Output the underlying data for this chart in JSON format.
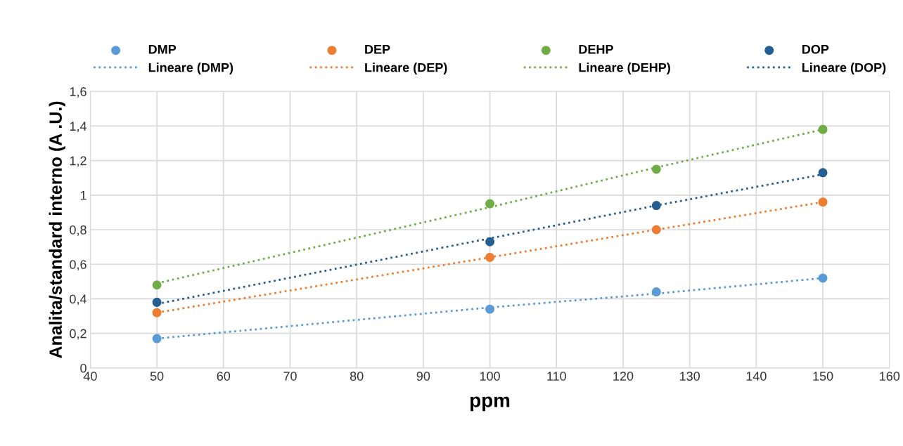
{
  "chart_data": {
    "type": "scatter",
    "xlabel": "ppm",
    "ylabel": "Analita/standard interno (A .U.)",
    "x": [
      50,
      100,
      125,
      150
    ],
    "series": [
      {
        "name": "DMP",
        "color": "#5b9bd5",
        "values": [
          0.17,
          0.34,
          0.44,
          0.52
        ]
      },
      {
        "name": "Lineare (DMP)",
        "type": "line",
        "color": "#5b9bd5",
        "values": [
          0.17,
          0.35,
          0.43,
          0.52
        ],
        "line_style": "dotted",
        "marker": "none"
      },
      {
        "name": "DEP",
        "color": "#ed7d31",
        "values": [
          0.32,
          0.64,
          0.8,
          0.96
        ]
      },
      {
        "name": "Lineare (DEP)",
        "type": "line",
        "color": "#ed7d31",
        "values": [
          0.32,
          0.64,
          0.8,
          0.96
        ],
        "line_style": "dotted",
        "marker": "none"
      },
      {
        "name": "DEHP",
        "color": "#70ad47",
        "values": [
          0.48,
          0.95,
          1.15,
          1.38
        ]
      },
      {
        "name": "Lineare (DEHP)",
        "type": "line",
        "color": "#70ad47",
        "values": [
          0.49,
          0.93,
          1.16,
          1.38
        ],
        "line_style": "dotted",
        "marker": "none"
      },
      {
        "name": "DOP",
        "color": "#255e91",
        "values": [
          0.38,
          0.73,
          0.94,
          1.13
        ]
      },
      {
        "name": "Lineare (DOP)",
        "type": "line",
        "color": "#255e91",
        "values": [
          0.37,
          0.75,
          0.94,
          1.12
        ],
        "line_style": "dotted",
        "marker": "none"
      }
    ],
    "marker": "circle",
    "xlim": [
      40,
      160
    ],
    "xticks": [
      40,
      50,
      60,
      70,
      80,
      90,
      100,
      110,
      120,
      130,
      140,
      150,
      160
    ],
    "ylim": [
      0,
      1.6
    ],
    "yticks": [
      0,
      {
        "value": 0.2,
        "label": "0,2"
      },
      {
        "value": 0.4,
        "label": "0,4"
      },
      {
        "value": 0.6,
        "label": "0,6"
      },
      {
        "value": 0.8,
        "label": "0,8"
      },
      1,
      {
        "value": 1.2,
        "label": "1,2"
      },
      {
        "value": 1.4,
        "label": "1,4"
      },
      {
        "value": 1.6,
        "label": "1,6"
      }
    ],
    "grid": true,
    "legend": "top"
  }
}
